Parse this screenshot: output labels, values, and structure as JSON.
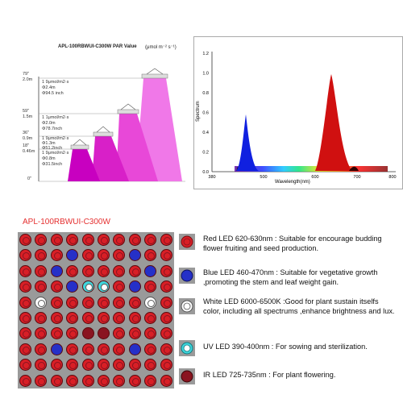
{
  "par": {
    "title": "APL-100RBWUI-C300W  PAR Value",
    "unit": "(μmol m⁻² s⁻¹)",
    "levels": [
      {
        "feet": "79\"",
        "meters": "2.0m",
        "lines": [
          "1 9μmol/m2·s",
          "Φ2.4m",
          "Φ94.5 inch"
        ]
      },
      {
        "feet": "59\"",
        "meters": "1.5m",
        "lines": [
          "1 1μmol/m2·s",
          "Φ2.0m",
          "Φ78.7inch"
        ]
      },
      {
        "feet": "36\"",
        "meters": "0.9m",
        "lines": [
          "1 9μmol/m2·s",
          "Φ1.3m",
          "Φ51.2inch"
        ]
      },
      {
        "feet": "18\"",
        "meters": "0.46m",
        "lines": [
          "1 9μmol/m2·s",
          "Φ0.8m",
          "Φ31.5inch"
        ]
      },
      {
        "feet": "0\"",
        "meters": "",
        "lines": []
      }
    ]
  },
  "spectrum": {
    "ylabel": "Spectrum",
    "xlabel": "Wavelength(nm)",
    "yticks": [
      "0.0",
      "0.2",
      "0.4",
      "0.6",
      "0.8",
      "1.0",
      "1.2"
    ],
    "xticks": [
      "380",
      "500",
      "600",
      "700",
      "800"
    ]
  },
  "product_title": "APL-100RBWUI-C300W",
  "legend": [
    {
      "color": "#d81f26",
      "type": "red",
      "text": "Red LED 620-630nm  : Suitable for encourage budding flower fruiting and seed production."
    },
    {
      "color": "#2530c8",
      "type": "blue",
      "text": "Blue LED 460-470nm  : Suitable for vegetative growth ,promoting the stem and leaf weight gain."
    },
    {
      "color": "#ffffff",
      "type": "white",
      "text": "White LED 6000-6500K :Good for plant sustain itselfs color, including all spectrums ,enhance brightness and lux."
    },
    {
      "color": "#3fd6dc",
      "type": "uv",
      "text": "UV LED  390-400nm  : For sowing and sterilization."
    },
    {
      "color": "#8a1420",
      "type": "ir",
      "text": "IR LED   725-735nm  : For plant flowering."
    }
  ],
  "grid_layout": [
    "RRRRRRRRRR",
    "RRRBRRRBRR",
    "RRBRRRRRBR",
    "RRRBUURBRR",
    "RWRRRRRRWR",
    "RRRRRRRRRR",
    "RRRRIIRRRR",
    "RRBRRRRBRR",
    "RRRRRRRRRR",
    "RRRRRRRRRR"
  ]
}
